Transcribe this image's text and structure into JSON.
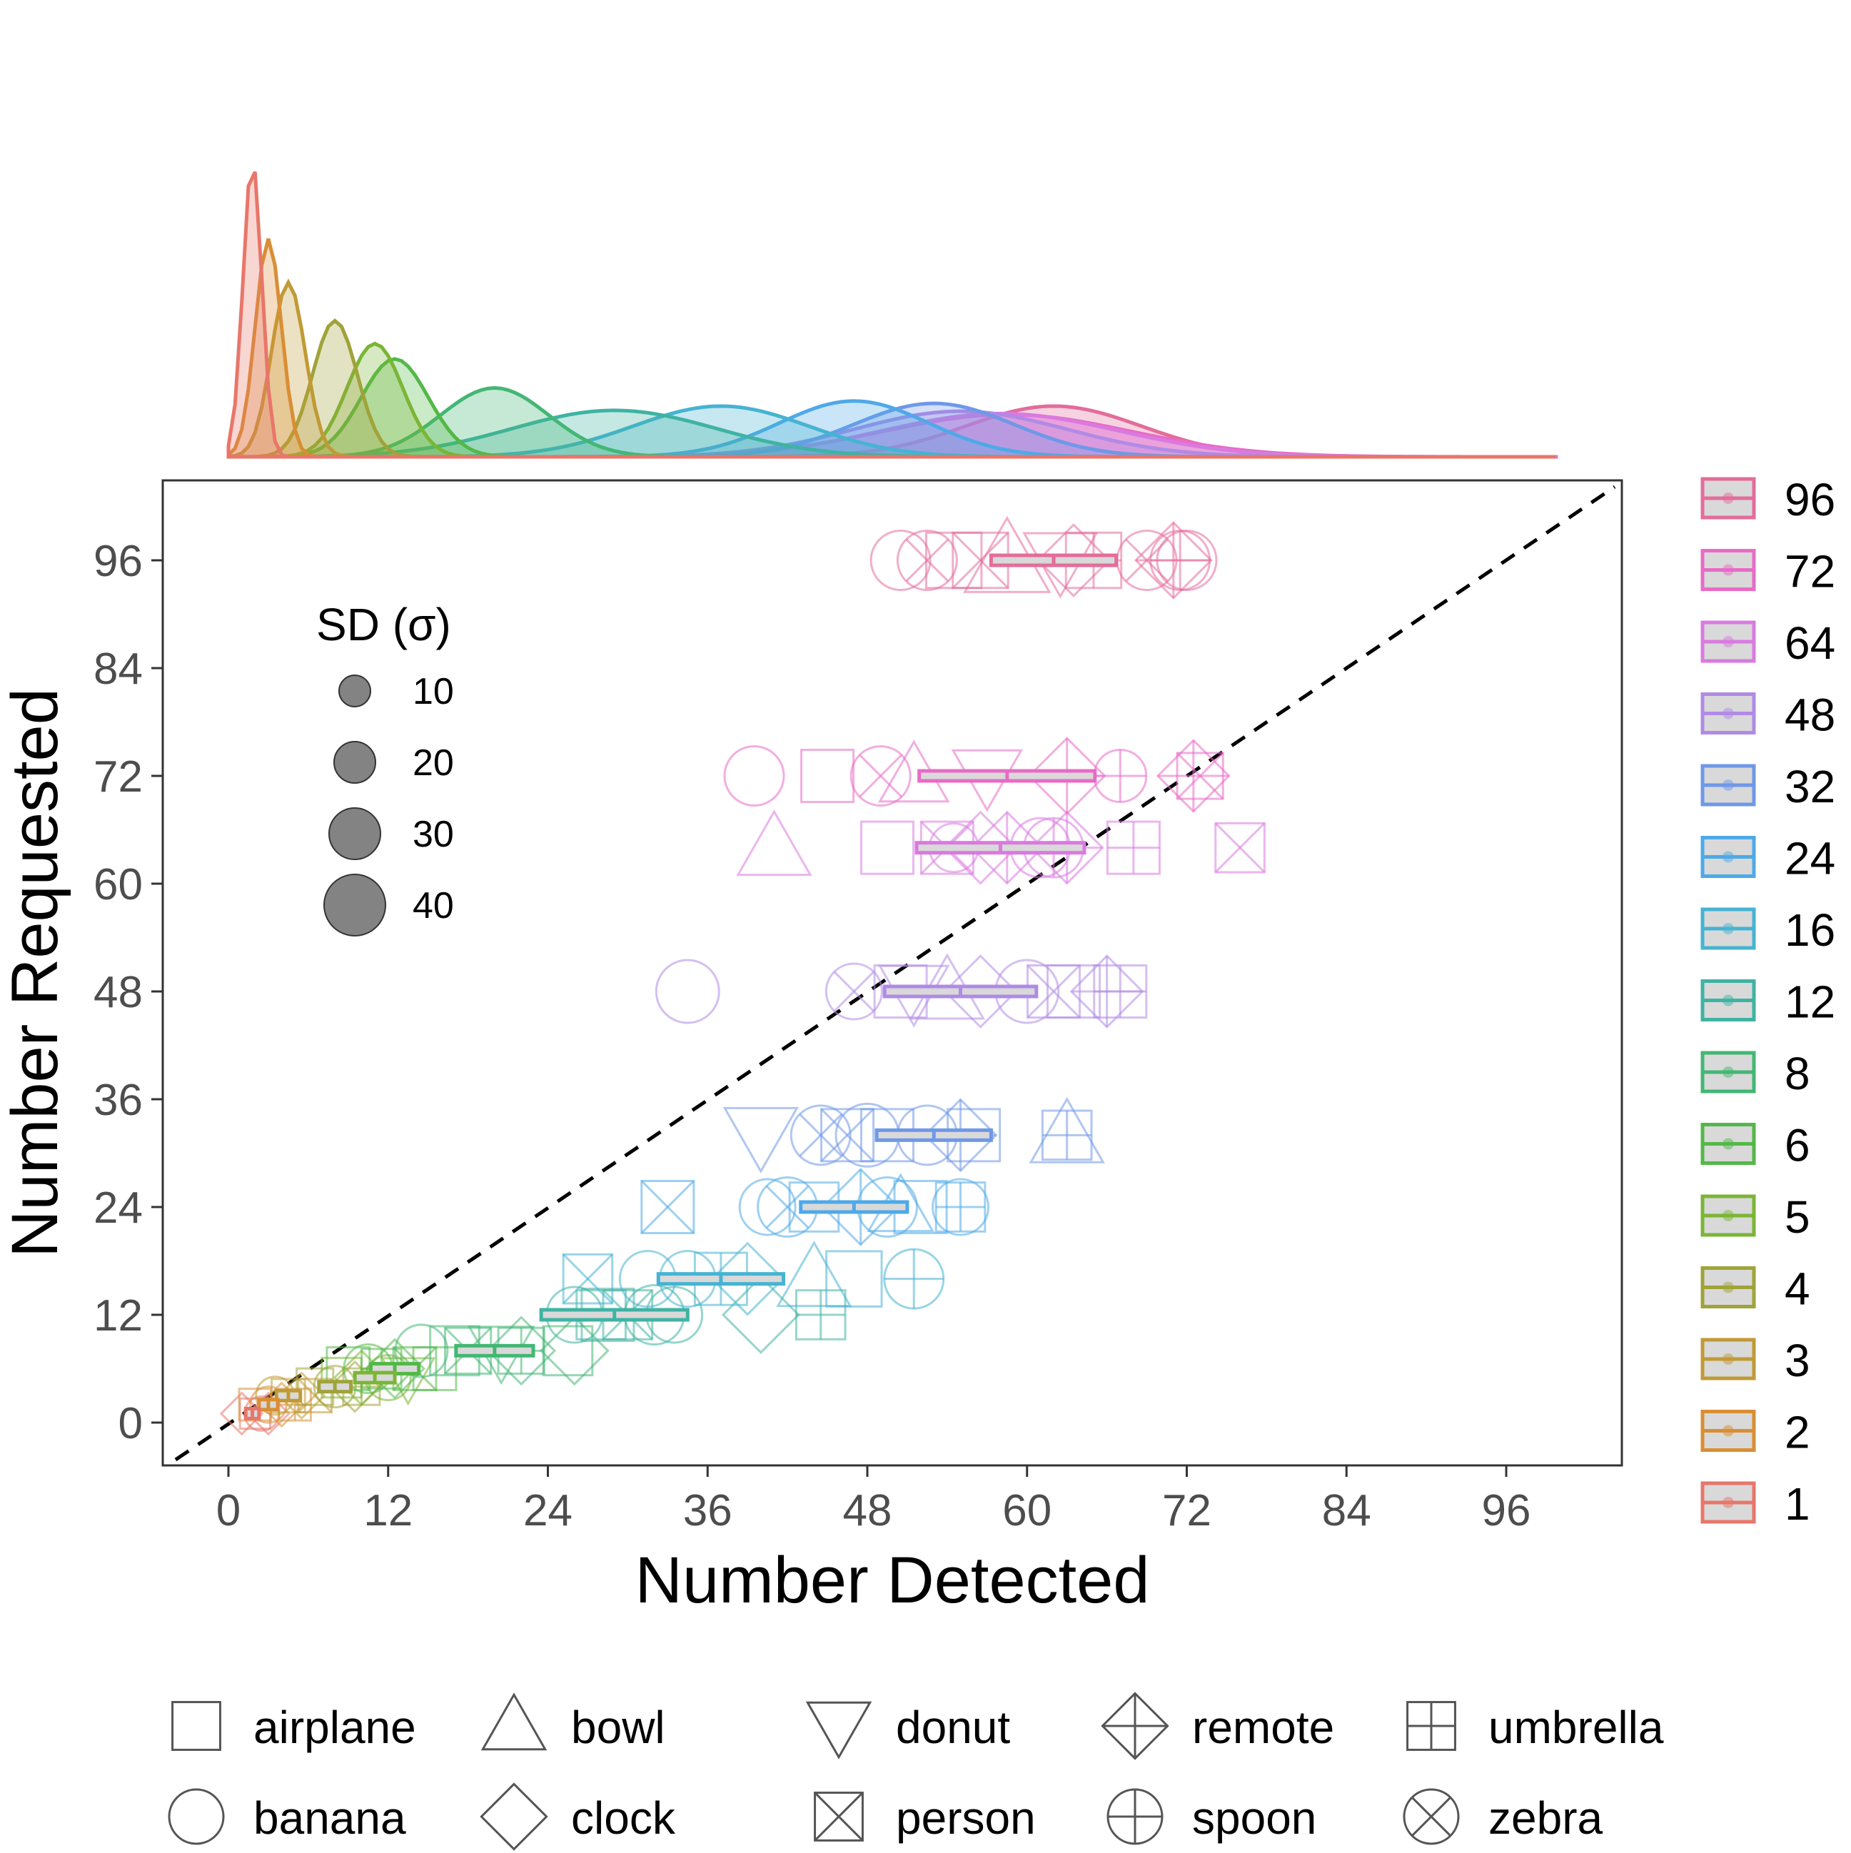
{
  "chart_data": {
    "type": "scatter",
    "xlabel": "Number Detected",
    "ylabel": "Number Requested",
    "x_ticks": [
      0,
      12,
      24,
      36,
      48,
      60,
      72,
      84,
      96
    ],
    "y_ticks": [
      0,
      12,
      24,
      36,
      48,
      60,
      72,
      84,
      96
    ],
    "xlim": [
      -4,
      105
    ],
    "ylim": [
      -5,
      105
    ],
    "reference_line": "y = x (dashed)",
    "grid": false,
    "size_legend": {
      "title": "SD (σ)",
      "values": [
        10,
        20,
        30,
        40
      ]
    },
    "color_legend": {
      "placement": "right",
      "entries": [
        {
          "label": "96",
          "color": "#e36d9a"
        },
        {
          "label": "72",
          "color": "#e86bc6"
        },
        {
          "label": "64",
          "color": "#d97ae0"
        },
        {
          "label": "48",
          "color": "#b18ae6"
        },
        {
          "label": "32",
          "color": "#6f98e8"
        },
        {
          "label": "24",
          "color": "#4ea9e8"
        },
        {
          "label": "16",
          "color": "#46b3d2"
        },
        {
          "label": "12",
          "color": "#3fb3a3"
        },
        {
          "label": "8",
          "color": "#43b774"
        },
        {
          "label": "6",
          "color": "#54b848"
        },
        {
          "label": "5",
          "color": "#7bb536"
        },
        {
          "label": "4",
          "color": "#a0a339"
        },
        {
          "label": "3",
          "color": "#c09a35"
        },
        {
          "label": "2",
          "color": "#d98e34"
        },
        {
          "label": "1",
          "color": "#e8766a"
        }
      ]
    },
    "shape_legend": {
      "placement": "bottom",
      "entries": [
        {
          "label": "airplane",
          "shape": "square"
        },
        {
          "label": "bowl",
          "shape": "triangle"
        },
        {
          "label": "donut",
          "shape": "triangle-down"
        },
        {
          "label": "remote",
          "shape": "diamond-plus"
        },
        {
          "label": "umbrella",
          "shape": "square-plus"
        },
        {
          "label": "banana",
          "shape": "circle"
        },
        {
          "label": "clock",
          "shape": "diamond"
        },
        {
          "label": "person",
          "shape": "square-x"
        },
        {
          "label": "spoon",
          "shape": "circle-plus"
        },
        {
          "label": "zebra",
          "shape": "circle-x"
        }
      ]
    },
    "series": [
      {
        "name": "96",
        "requested": 96,
        "mean": 62,
        "sd": 4.7,
        "points": [
          {
            "object": "banana",
            "x": 50.5,
            "size": 22
          },
          {
            "object": "zebra",
            "x": 52.5,
            "size": 22
          },
          {
            "object": "airplane",
            "x": 54.5,
            "size": 24
          },
          {
            "object": "person",
            "x": 56.5,
            "size": 24
          },
          {
            "object": "bowl",
            "x": 58.5,
            "size": 30
          },
          {
            "object": "donut",
            "x": 62.5,
            "size": 24
          },
          {
            "object": "clock",
            "x": 63.5,
            "size": 22
          },
          {
            "object": "umbrella",
            "x": 65,
            "size": 24
          },
          {
            "object": "zebra",
            "x": 69,
            "size": 22
          },
          {
            "object": "remote",
            "x": 71,
            "size": 24
          },
          {
            "object": "spoon",
            "x": 71.5,
            "size": 22
          },
          {
            "object": "banana",
            "x": 72,
            "size": 22
          }
        ]
      },
      {
        "name": "72",
        "requested": 72,
        "mean": 58.5,
        "sd": 6.6,
        "points": [
          {
            "object": "banana",
            "x": 39.5,
            "size": 22
          },
          {
            "object": "airplane",
            "x": 45,
            "size": 22
          },
          {
            "object": "zebra",
            "x": 49,
            "size": 22
          },
          {
            "object": "bowl",
            "x": 51.5,
            "size": 22
          },
          {
            "object": "donut",
            "x": 57,
            "size": 22
          },
          {
            "object": "remote",
            "x": 63,
            "size": 24
          },
          {
            "object": "spoon",
            "x": 67,
            "size": 18
          },
          {
            "object": "remote",
            "x": 72.5,
            "size": 22
          },
          {
            "object": "person",
            "x": 73,
            "size": 18
          }
        ]
      },
      {
        "name": "64",
        "requested": 64,
        "mean": 58,
        "sd": 6.3,
        "points": [
          {
            "object": "bowl",
            "x": 41,
            "size": 24
          },
          {
            "object": "airplane",
            "x": 49.5,
            "size": 22
          },
          {
            "object": "person",
            "x": 54,
            "size": 22
          },
          {
            "object": "banana",
            "x": 54.5,
            "size": 16
          },
          {
            "object": "clock",
            "x": 56.5,
            "size": 22
          },
          {
            "object": "remote",
            "x": 58.5,
            "size": 22
          },
          {
            "object": "banana",
            "x": 61,
            "size": 22
          },
          {
            "object": "spoon",
            "x": 62,
            "size": 22
          },
          {
            "object": "remote",
            "x": 63,
            "size": 22
          },
          {
            "object": "umbrella",
            "x": 68,
            "size": 22
          },
          {
            "object": "person",
            "x": 76,
            "size": 20
          }
        ]
      },
      {
        "name": "48",
        "requested": 48,
        "mean": 55,
        "sd": 5.7,
        "points": [
          {
            "object": "banana",
            "x": 34.5,
            "size": 24
          },
          {
            "object": "zebra",
            "x": 47,
            "size": 20
          },
          {
            "object": "airplane",
            "x": 50.5,
            "size": 22
          },
          {
            "object": "donut",
            "x": 51.5,
            "size": 22
          },
          {
            "object": "bowl",
            "x": 54,
            "size": 24
          },
          {
            "object": "clock",
            "x": 56.5,
            "size": 22
          },
          {
            "object": "banana",
            "x": 60,
            "size": 24
          },
          {
            "object": "person",
            "x": 62,
            "size": 22
          },
          {
            "object": "airplane",
            "x": 63.5,
            "size": 22
          },
          {
            "object": "remote",
            "x": 66,
            "size": 22
          },
          {
            "object": "umbrella",
            "x": 67,
            "size": 22
          }
        ]
      },
      {
        "name": "32",
        "requested": 32,
        "mean": 53,
        "sd": 4.3,
        "points": [
          {
            "object": "donut",
            "x": 40,
            "size": 24
          },
          {
            "object": "zebra",
            "x": 44.5,
            "size": 22
          },
          {
            "object": "person",
            "x": 46.5,
            "size": 22
          },
          {
            "object": "banana",
            "x": 48,
            "size": 24
          },
          {
            "object": "airplane",
            "x": 49.5,
            "size": 22
          },
          {
            "object": "banana",
            "x": 52.5,
            "size": 22
          },
          {
            "object": "remote",
            "x": 55,
            "size": 22
          },
          {
            "object": "airplane",
            "x": 56,
            "size": 22
          },
          {
            "object": "bowl",
            "x": 63,
            "size": 24
          },
          {
            "object": "umbrella",
            "x": 63,
            "size": 20
          }
        ]
      },
      {
        "name": "24",
        "requested": 24,
        "mean": 47,
        "sd": 4.0,
        "points": [
          {
            "object": "person",
            "x": 33,
            "size": 22
          },
          {
            "object": "banana",
            "x": 40.5,
            "size": 20
          },
          {
            "object": "zebra",
            "x": 42,
            "size": 22
          },
          {
            "object": "airplane",
            "x": 44,
            "size": 20
          },
          {
            "object": "remote",
            "x": 47.5,
            "size": 24
          },
          {
            "object": "banana",
            "x": 49.5,
            "size": 22
          },
          {
            "object": "bowl",
            "x": 50.5,
            "size": 20
          },
          {
            "object": "airplane",
            "x": 52,
            "size": 22
          },
          {
            "object": "banana",
            "x": 55,
            "size": 20
          },
          {
            "object": "umbrella",
            "x": 55,
            "size": 20
          }
        ]
      },
      {
        "name": "16",
        "requested": 16,
        "mean": 37,
        "sd": 4.7,
        "points": [
          {
            "object": "person",
            "x": 27,
            "size": 20
          },
          {
            "object": "banana",
            "x": 31.5,
            "size": 20
          },
          {
            "object": "banana",
            "x": 34.5,
            "size": 20
          },
          {
            "object": "umbrella",
            "x": 37,
            "size": 22
          },
          {
            "object": "clock",
            "x": 39,
            "size": 22
          },
          {
            "object": "bowl",
            "x": 44,
            "size": 24
          },
          {
            "object": "airplane",
            "x": 47,
            "size": 24
          },
          {
            "object": "spoon",
            "x": 51.5,
            "size": 22
          }
        ]
      },
      {
        "name": "12",
        "requested": 12,
        "mean": 29,
        "sd": 5.5,
        "points": [
          {
            "object": "banana",
            "x": 26,
            "size": 20
          },
          {
            "object": "airplane",
            "x": 28,
            "size": 20
          },
          {
            "object": "person",
            "x": 30,
            "size": 20
          },
          {
            "object": "banana",
            "x": 32,
            "size": 22
          },
          {
            "object": "banana",
            "x": 33.5,
            "size": 20
          },
          {
            "object": "clock",
            "x": 40,
            "size": 24
          },
          {
            "object": "umbrella",
            "x": 44.5,
            "size": 20
          },
          {
            "object": "airplane",
            "x": 28.5,
            "size": 22
          }
        ]
      },
      {
        "name": "8",
        "requested": 8,
        "mean": 20,
        "sd": 2.9,
        "points": [
          {
            "object": "banana",
            "x": 14.5,
            "size": 18
          },
          {
            "object": "airplane",
            "x": 17,
            "size": 20
          },
          {
            "object": "donut",
            "x": 20.5,
            "size": 20
          },
          {
            "object": "clock",
            "x": 22,
            "size": 20
          },
          {
            "object": "airplane",
            "x": 25.5,
            "size": 20
          },
          {
            "object": "person",
            "x": 18,
            "size": 18
          },
          {
            "object": "umbrella",
            "x": 22,
            "size": 18
          },
          {
            "object": "clock",
            "x": 26,
            "size": 20
          }
        ]
      },
      {
        "name": "6",
        "requested": 6,
        "mean": 12.5,
        "sd": 1.8,
        "points": [
          {
            "object": "airplane",
            "x": 9,
            "size": 16
          },
          {
            "object": "banana",
            "x": 10.5,
            "size": 16
          },
          {
            "object": "clock",
            "x": 12.5,
            "size": 16
          },
          {
            "object": "person",
            "x": 14,
            "size": 16
          },
          {
            "object": "airplane",
            "x": 15.5,
            "size": 16
          },
          {
            "object": "umbrella",
            "x": 11.5,
            "size": 14
          }
        ]
      },
      {
        "name": "5",
        "requested": 5,
        "mean": 11,
        "sd": 1.5,
        "points": [
          {
            "object": "airplane",
            "x": 8.5,
            "size": 14
          },
          {
            "object": "clock",
            "x": 10,
            "size": 14
          },
          {
            "object": "banana",
            "x": 12,
            "size": 14
          },
          {
            "object": "donut",
            "x": 13.5,
            "size": 14
          }
        ]
      },
      {
        "name": "4",
        "requested": 4,
        "mean": 8,
        "sd": 1.2,
        "points": [
          {
            "object": "airplane",
            "x": 6.5,
            "size": 12
          },
          {
            "object": "banana",
            "x": 8,
            "size": 12
          },
          {
            "object": "clock",
            "x": 9.5,
            "size": 12
          },
          {
            "object": "umbrella",
            "x": 10,
            "size": 12
          }
        ]
      },
      {
        "name": "3",
        "requested": 3,
        "mean": 4.5,
        "sd": 0.9,
        "points": [
          {
            "object": "banana",
            "x": 3.5,
            "size": 10
          },
          {
            "object": "airplane",
            "x": 4.5,
            "size": 10
          },
          {
            "object": "clock",
            "x": 5.5,
            "size": 10
          },
          {
            "object": "person",
            "x": 6.5,
            "size": 10
          }
        ]
      },
      {
        "name": "2",
        "requested": 2,
        "mean": 3,
        "sd": 0.7,
        "points": [
          {
            "object": "airplane",
            "x": 2,
            "size": 9
          },
          {
            "object": "banana",
            "x": 3,
            "size": 9
          },
          {
            "object": "clock",
            "x": 4,
            "size": 9
          },
          {
            "object": "umbrella",
            "x": 5,
            "size": 9
          }
        ]
      },
      {
        "name": "1",
        "requested": 1,
        "mean": 1.8,
        "sd": 0.5,
        "points": [
          {
            "object": "clock",
            "x": 1,
            "size": 8
          },
          {
            "object": "airplane",
            "x": 2,
            "size": 8
          },
          {
            "object": "banana",
            "x": 2.5,
            "size": 8
          },
          {
            "object": "clock",
            "x": 3,
            "size": 8
          }
        ]
      }
    ]
  }
}
